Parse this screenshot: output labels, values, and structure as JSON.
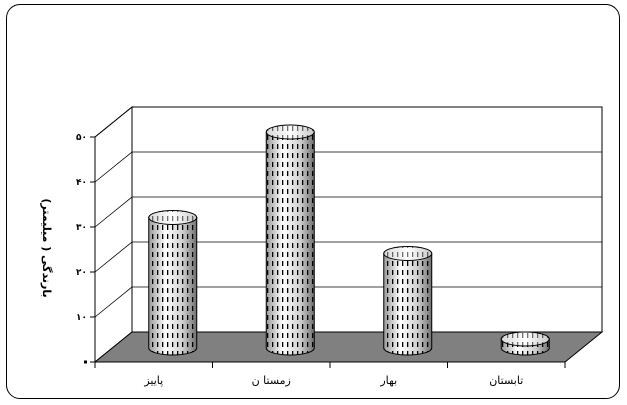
{
  "chart_data": {
    "type": "bar",
    "style": "3d-cylinder",
    "title": "",
    "xlabel": "",
    "ylabel": "بارندگی ( میلیمتر)",
    "categories": [
      "پاییز",
      "زمستا ن",
      "بهار",
      "تابستان"
    ],
    "values": [
      29,
      48,
      21,
      2
    ],
    "ylim": [
      0,
      50
    ],
    "yticks": [
      0,
      10,
      20,
      30,
      40,
      50
    ],
    "ytick_labels": [
      "",
      "۱۰",
      "۲۰",
      "۳۰",
      "۴۰",
      "۵۰"
    ],
    "grid": true,
    "legend": "none",
    "colors": {
      "floor": "#808080",
      "cylinder_light": "#ffffff",
      "cylinder_dark": "#8a8a8a",
      "dashes": "#000000"
    }
  }
}
